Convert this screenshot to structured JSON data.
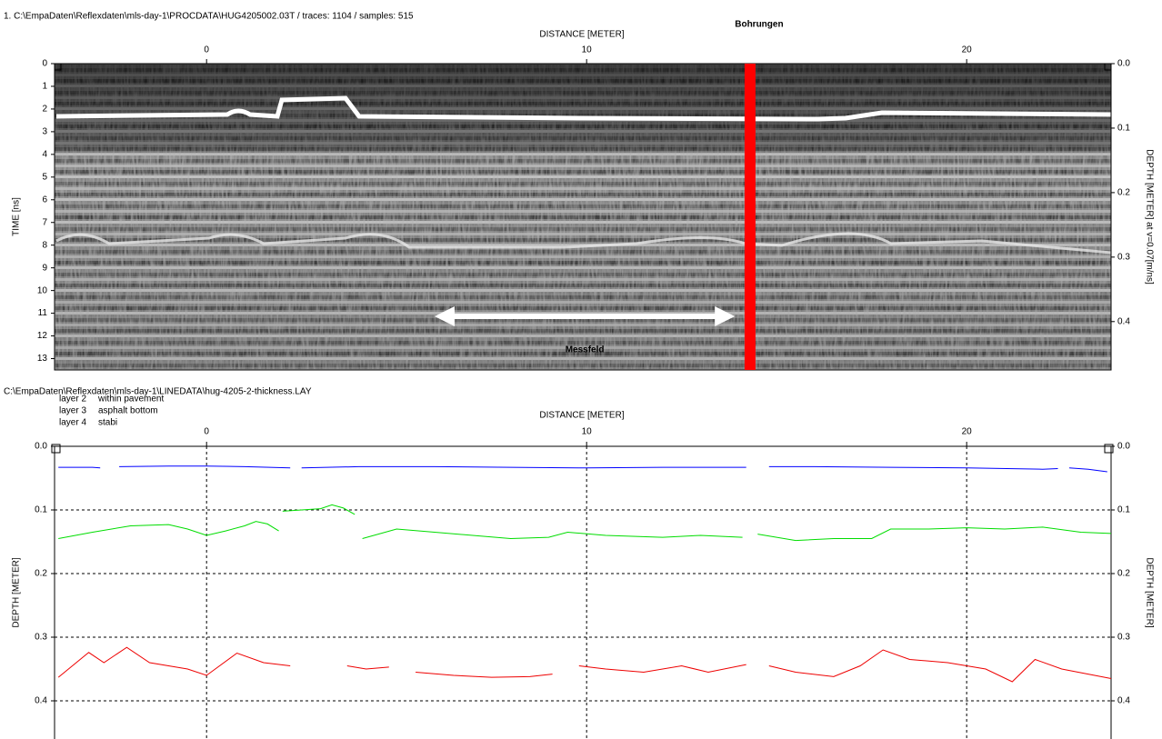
{
  "chart_data": [
    {
      "type": "radargram",
      "title": "1. C:\\EmpaDaten\\Reflexdaten\\mls-day-1\\PROCDATA\\HUG4205002.03T / traces: 1104 / samples: 515",
      "xlabel": "DISTANCE [METER]",
      "ylabel": "TIME [ns]",
      "y2label": "DEPTH [METER] at v=0.07[m/ns]",
      "xlim": [
        -4,
        23.8
      ],
      "xticks": [
        0,
        10,
        20
      ],
      "ylim": [
        0,
        13.5
      ],
      "yticks": [
        0,
        1,
        2,
        3,
        4,
        5,
        6,
        7,
        8,
        9,
        10,
        11,
        12,
        13
      ],
      "y_inverted": true,
      "y2lim": [
        0,
        0.475
      ],
      "y2ticks": [
        {
          "value": 0,
          "label": "0.0"
        },
        0.1,
        0.2,
        0.3,
        0.4
      ],
      "annotations": [
        {
          "text": "Bohrungen",
          "x": 14.3,
          "color": "#ff0000"
        },
        {
          "text": "Messfeld",
          "x": [
            6.0,
            13.9
          ],
          "color": "#ffffff"
        }
      ]
    },
    {
      "type": "line",
      "title": "C:\\EmpaDaten\\Reflexdaten\\mls-day-1\\LINEDATA\\hug-4205-2-thickness.LAY",
      "xlabel": "DISTANCE [METER]",
      "ylabel": "DEPTH [METER]",
      "ylabel_right": "DEPTH [METER]",
      "xlim": [
        -4,
        23.8
      ],
      "xticks": [
        0,
        10,
        20
      ],
      "ylim": [
        0,
        0.46
      ],
      "yticks": [
        {
          "value": 0,
          "label": "0.0"
        },
        0.1,
        0.2,
        0.3,
        0.4
      ],
      "y_inverted": true,
      "grid": true,
      "series": [
        {
          "name": "layer 2",
          "description": "within pavement",
          "color": "#0000ff",
          "x": [
            -3.9,
            -3.0,
            -2.8,
            -2.5,
            -2.3,
            -1,
            0,
            1,
            2.2,
            2.35,
            2.5,
            4,
            6,
            8,
            10,
            12,
            14.2,
            14.5,
            14.8,
            16,
            18,
            20,
            22,
            22.4,
            22.55,
            22.7,
            23.2,
            23.7
          ],
          "values": [
            0.033,
            0.033,
            0.034,
            null,
            0.032,
            0.031,
            0.031,
            0.032,
            0.034,
            null,
            0.034,
            0.032,
            0.032,
            0.033,
            0.034,
            0.033,
            0.033,
            null,
            0.032,
            0.032,
            0.033,
            0.034,
            0.036,
            0.035,
            null,
            0.034,
            0.036,
            0.04
          ]
        },
        {
          "name": "layer 3",
          "description": "asphalt bottom",
          "color": "#00dd00",
          "x": [
            -3.9,
            -3,
            -2,
            -1,
            -0.5,
            0,
            0.5,
            1.0,
            1.3,
            1.6,
            1.9,
            1.95,
            2.0,
            2.5,
            3.0,
            3.3,
            3.6,
            3.9,
            4.0,
            4.1,
            5,
            6,
            7,
            8,
            9,
            9.5,
            10.5,
            12,
            13,
            14.1,
            14.3,
            14.5,
            15.5,
            16.5,
            17.5,
            18,
            19,
            20,
            21,
            22,
            23,
            23.8
          ],
          "values": [
            0.145,
            0.135,
            0.125,
            0.123,
            0.13,
            0.14,
            0.133,
            0.125,
            0.118,
            0.122,
            0.133,
            null,
            0.102,
            0.1,
            0.098,
            0.092,
            0.097,
            0.107,
            null,
            0.145,
            0.13,
            0.135,
            0.14,
            0.145,
            0.143,
            0.135,
            0.14,
            0.143,
            0.14,
            0.143,
            null,
            0.138,
            0.148,
            0.145,
            0.145,
            0.13,
            0.13,
            0.128,
            0.13,
            0.127,
            0.135,
            0.137
          ]
        },
        {
          "name": "layer 4",
          "description": "stabi",
          "color": "#ee0000",
          "x": [
            -3.9,
            -3.1,
            -2.7,
            -2.1,
            -1.5,
            -0.5,
            0,
            0.8,
            1.5,
            2.2,
            3.0,
            3.7,
            4.2,
            4.8,
            5.2,
            5.5,
            6.5,
            7.5,
            8.5,
            9.1,
            9.5,
            9.8,
            10.5,
            11.5,
            12.5,
            13.2,
            14.2,
            14.5,
            14.8,
            15.5,
            16.5,
            17.2,
            17.8,
            18.5,
            19.5,
            20.5,
            21.2,
            21.8,
            22.5,
            23.8
          ],
          "values": [
            0.363,
            0.324,
            0.34,
            0.316,
            0.34,
            0.35,
            0.36,
            0.325,
            0.34,
            0.345,
            null,
            0.345,
            0.35,
            0.347,
            null,
            0.355,
            0.36,
            0.363,
            0.362,
            0.358,
            null,
            0.345,
            0.35,
            0.355,
            0.345,
            0.355,
            0.343,
            null,
            0.345,
            0.355,
            0.362,
            0.345,
            0.32,
            0.335,
            0.34,
            0.35,
            0.37,
            0.335,
            0.35,
            0.365
          ]
        }
      ]
    }
  ]
}
